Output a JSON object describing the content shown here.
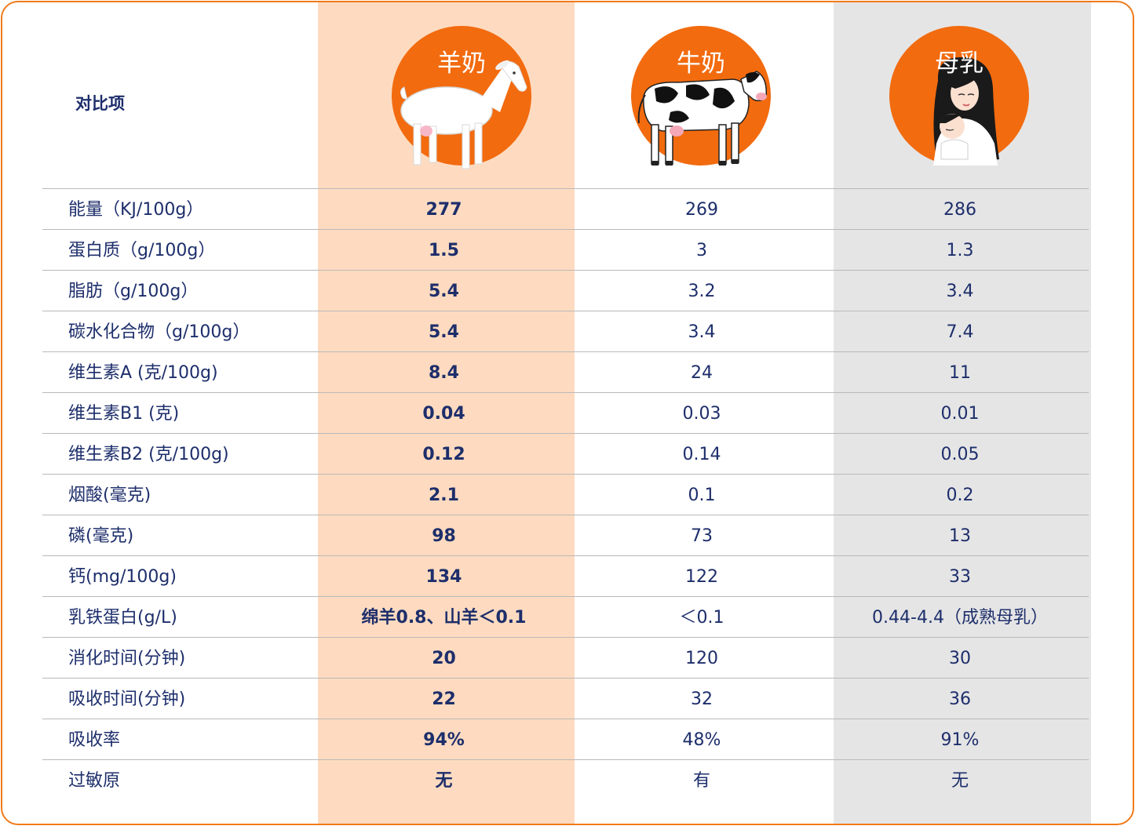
{
  "header": {
    "label": "对比项",
    "columns": [
      {
        "name": "羊奶",
        "icon": "goat-icon"
      },
      {
        "name": "牛奶",
        "icon": "cow-icon"
      },
      {
        "name": "母乳",
        "icon": "mother-baby-icon"
      }
    ]
  },
  "colors": {
    "accent": "#f26b0f",
    "goat_column_bg": "#fedbc0",
    "human_column_bg": "#e5e5e5",
    "text": "#1d2e6b",
    "border": "#f07a1a"
  },
  "rows": [
    {
      "label": "能量（KJ/100g）",
      "goat": "277",
      "cow": "269",
      "human": "286"
    },
    {
      "label": "蛋白质（g/100g）",
      "goat": "1.5",
      "cow": "3",
      "human": "1.3"
    },
    {
      "label": "脂肪（g/100g）",
      "goat": "5.4",
      "cow": "3.2",
      "human": "3.4"
    },
    {
      "label": "碳水化合物（g/100g）",
      "goat": "5.4",
      "cow": "3.4",
      "human": "7.4"
    },
    {
      "label": "维生素A (克/100g)",
      "goat": "8.4",
      "cow": "24",
      "human": "11"
    },
    {
      "label": "维生素B1 (克)",
      "goat": "0.04",
      "cow": "0.03",
      "human": "0.01"
    },
    {
      "label": "维生素B2 (克/100g)",
      "goat": "0.12",
      "cow": "0.14",
      "human": "0.05"
    },
    {
      "label": "烟酸(毫克)",
      "goat": "2.1",
      "cow": "0.1",
      "human": "0.2"
    },
    {
      "label": "磷(毫克)",
      "goat": "98",
      "cow": "73",
      "human": "13"
    },
    {
      "label": "钙(mg/100g)",
      "goat": "134",
      "cow": "122",
      "human": "33"
    },
    {
      "label": "乳铁蛋白(g/L)",
      "goat": "绵羊0.8、山羊＜0.1",
      "cow": "＜0.1",
      "human": "0.44-4.4（成熟母乳）"
    },
    {
      "label": "消化时间(分钟)",
      "goat": "20",
      "cow": "120",
      "human": "30"
    },
    {
      "label": "吸收时间(分钟)",
      "goat": "22",
      "cow": "32",
      "human": "36"
    },
    {
      "label": "吸收率",
      "goat": "94%",
      "cow": "48%",
      "human": "91%"
    },
    {
      "label": "过敏原",
      "goat": "无",
      "cow": "有",
      "human": "无"
    }
  ]
}
